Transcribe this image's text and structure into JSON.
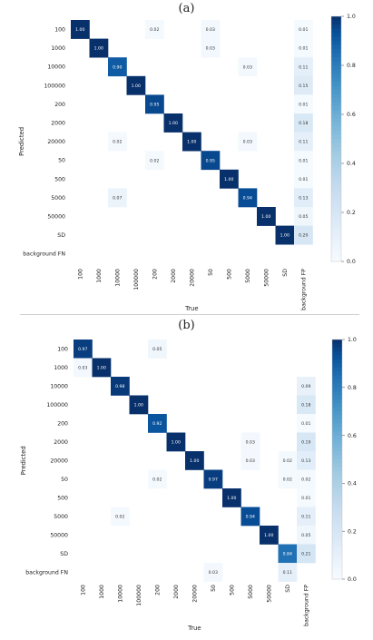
{
  "colors": {
    "min": "#f7fbff",
    "max": "#08306b"
  },
  "chart_data": [
    {
      "type": "heatmap",
      "panel_label": "(a)",
      "xlabel": "True",
      "ylabel": "Predicted",
      "x_categories": [
        "100",
        "1000",
        "10000",
        "100000",
        "200",
        "2000",
        "20000",
        "50",
        "500",
        "5000",
        "50000",
        "SD",
        "background FP"
      ],
      "y_categories": [
        "100",
        "1000",
        "10000",
        "100000",
        "200",
        "2000",
        "20000",
        "50",
        "500",
        "5000",
        "50000",
        "SD",
        "background FN"
      ],
      "colorbar": {
        "min": 0.0,
        "max": 1.0,
        "ticks": [
          "0.0",
          "0.2",
          "0.4",
          "0.6",
          "0.8",
          "1.0"
        ]
      },
      "cells": [
        {
          "row": 0,
          "col": 0,
          "value": "1.00"
        },
        {
          "row": 0,
          "col": 4,
          "value": "0.02"
        },
        {
          "row": 0,
          "col": 7,
          "value": "0.03"
        },
        {
          "row": 0,
          "col": 12,
          "value": "0.01"
        },
        {
          "row": 1,
          "col": 1,
          "value": "1.00"
        },
        {
          "row": 1,
          "col": 7,
          "value": "0.03"
        },
        {
          "row": 1,
          "col": 12,
          "value": "0.01"
        },
        {
          "row": 2,
          "col": 2,
          "value": "0.90"
        },
        {
          "row": 2,
          "col": 9,
          "value": "0.03"
        },
        {
          "row": 2,
          "col": 12,
          "value": "0.11"
        },
        {
          "row": 3,
          "col": 3,
          "value": "1.00"
        },
        {
          "row": 3,
          "col": 12,
          "value": "0.15"
        },
        {
          "row": 4,
          "col": 4,
          "value": "0.95"
        },
        {
          "row": 4,
          "col": 12,
          "value": "0.01"
        },
        {
          "row": 5,
          "col": 5,
          "value": "1.00"
        },
        {
          "row": 5,
          "col": 12,
          "value": "0.18"
        },
        {
          "row": 6,
          "col": 2,
          "value": "0.02"
        },
        {
          "row": 6,
          "col": 6,
          "value": "1.00"
        },
        {
          "row": 6,
          "col": 9,
          "value": "0.03"
        },
        {
          "row": 6,
          "col": 12,
          "value": "0.11"
        },
        {
          "row": 7,
          "col": 4,
          "value": "0.02"
        },
        {
          "row": 7,
          "col": 7,
          "value": "0.95"
        },
        {
          "row": 7,
          "col": 12,
          "value": "0.01"
        },
        {
          "row": 8,
          "col": 8,
          "value": "1.00"
        },
        {
          "row": 8,
          "col": 12,
          "value": "0.01"
        },
        {
          "row": 9,
          "col": 2,
          "value": "0.07"
        },
        {
          "row": 9,
          "col": 9,
          "value": "0.94"
        },
        {
          "row": 9,
          "col": 12,
          "value": "0.13"
        },
        {
          "row": 10,
          "col": 10,
          "value": "1.00"
        },
        {
          "row": 10,
          "col": 12,
          "value": "0.05"
        },
        {
          "row": 11,
          "col": 11,
          "value": "1.00"
        },
        {
          "row": 11,
          "col": 12,
          "value": "0.20"
        }
      ]
    },
    {
      "type": "heatmap",
      "panel_label": "(b)",
      "xlabel": "True",
      "ylabel": "Predicted",
      "x_categories": [
        "100",
        "1000",
        "10000",
        "100000",
        "200",
        "2000",
        "20000",
        "50",
        "500",
        "5000",
        "50000",
        "SD",
        "background FP"
      ],
      "y_categories": [
        "100",
        "1000",
        "10000",
        "100000",
        "200",
        "2000",
        "20000",
        "50",
        "500",
        "5000",
        "50000",
        "SD",
        "background FN"
      ],
      "colorbar": {
        "min": 0.0,
        "max": 1.0,
        "ticks": [
          "0.0",
          "0.2",
          "0.4",
          "0.6",
          "0.8",
          "1.0"
        ]
      },
      "cells": [
        {
          "row": 0,
          "col": 0,
          "value": "0.97"
        },
        {
          "row": 0,
          "col": 4,
          "value": "0.05"
        },
        {
          "row": 1,
          "col": 0,
          "value": "0.03"
        },
        {
          "row": 1,
          "col": 1,
          "value": "1.00"
        },
        {
          "row": 2,
          "col": 2,
          "value": "0.98"
        },
        {
          "row": 2,
          "col": 12,
          "value": "0.09"
        },
        {
          "row": 3,
          "col": 3,
          "value": "1.00"
        },
        {
          "row": 3,
          "col": 12,
          "value": "0.18"
        },
        {
          "row": 4,
          "col": 4,
          "value": "0.92"
        },
        {
          "row": 4,
          "col": 12,
          "value": "0.01"
        },
        {
          "row": 5,
          "col": 5,
          "value": "1.00"
        },
        {
          "row": 5,
          "col": 9,
          "value": "0.03"
        },
        {
          "row": 5,
          "col": 12,
          "value": "0.19"
        },
        {
          "row": 6,
          "col": 6,
          "value": "1.00"
        },
        {
          "row": 6,
          "col": 9,
          "value": "0.03"
        },
        {
          "row": 6,
          "col": 11,
          "value": "0.02"
        },
        {
          "row": 6,
          "col": 12,
          "value": "0.13"
        },
        {
          "row": 7,
          "col": 4,
          "value": "0.02"
        },
        {
          "row": 7,
          "col": 7,
          "value": "0.97"
        },
        {
          "row": 7,
          "col": 11,
          "value": "0.02"
        },
        {
          "row": 7,
          "col": 12,
          "value": "0.02"
        },
        {
          "row": 8,
          "col": 8,
          "value": "1.00"
        },
        {
          "row": 8,
          "col": 12,
          "value": "0.01"
        },
        {
          "row": 9,
          "col": 2,
          "value": "0.02"
        },
        {
          "row": 9,
          "col": 9,
          "value": "0.94"
        },
        {
          "row": 9,
          "col": 12,
          "value": "0.11"
        },
        {
          "row": 10,
          "col": 10,
          "value": "1.00"
        },
        {
          "row": 10,
          "col": 12,
          "value": "0.05"
        },
        {
          "row": 11,
          "col": 11,
          "value": "0.84"
        },
        {
          "row": 11,
          "col": 12,
          "value": "0.21"
        },
        {
          "row": 12,
          "col": 7,
          "value": "0.03"
        },
        {
          "row": 12,
          "col": 11,
          "value": "0.11"
        }
      ]
    }
  ]
}
